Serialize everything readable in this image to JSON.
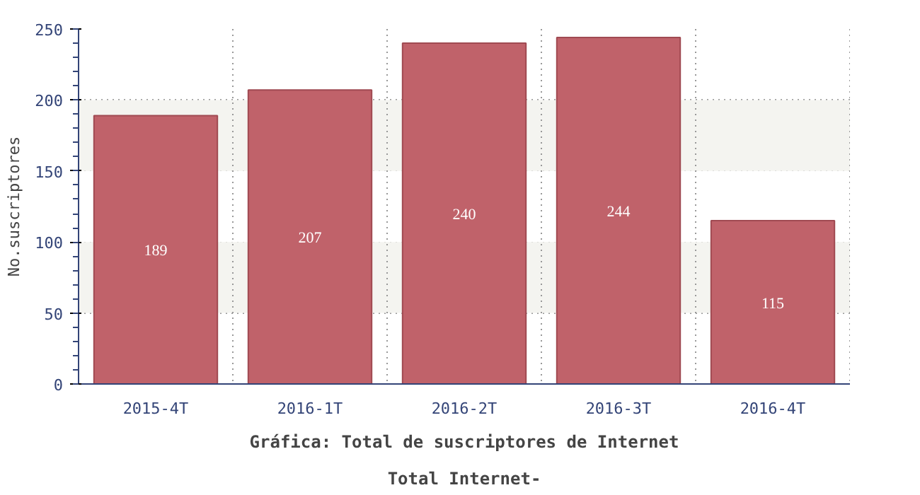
{
  "chart_data": {
    "type": "bar",
    "title": "Gráfica: Total de suscriptores de Internet",
    "subtitle": "Total Internet-",
    "ylabel": "No.suscriptores",
    "categories": [
      "2015-4T",
      "2016-1T",
      "2016-2T",
      "2016-3T",
      "2016-4T"
    ],
    "values": [
      189,
      207,
      240,
      244,
      115
    ],
    "color": "#c0626a",
    "ylim": [
      0,
      250
    ],
    "yticks": [
      0,
      50,
      100,
      150,
      200,
      250
    ],
    "grid": true,
    "data_labels": true,
    "bands": [
      {
        "axis": "y",
        "from": 50,
        "to": 100,
        "color": "#f4f4f0"
      },
      {
        "axis": "y",
        "from": 150,
        "to": 200,
        "color": "#f4f4f0"
      }
    ]
  }
}
